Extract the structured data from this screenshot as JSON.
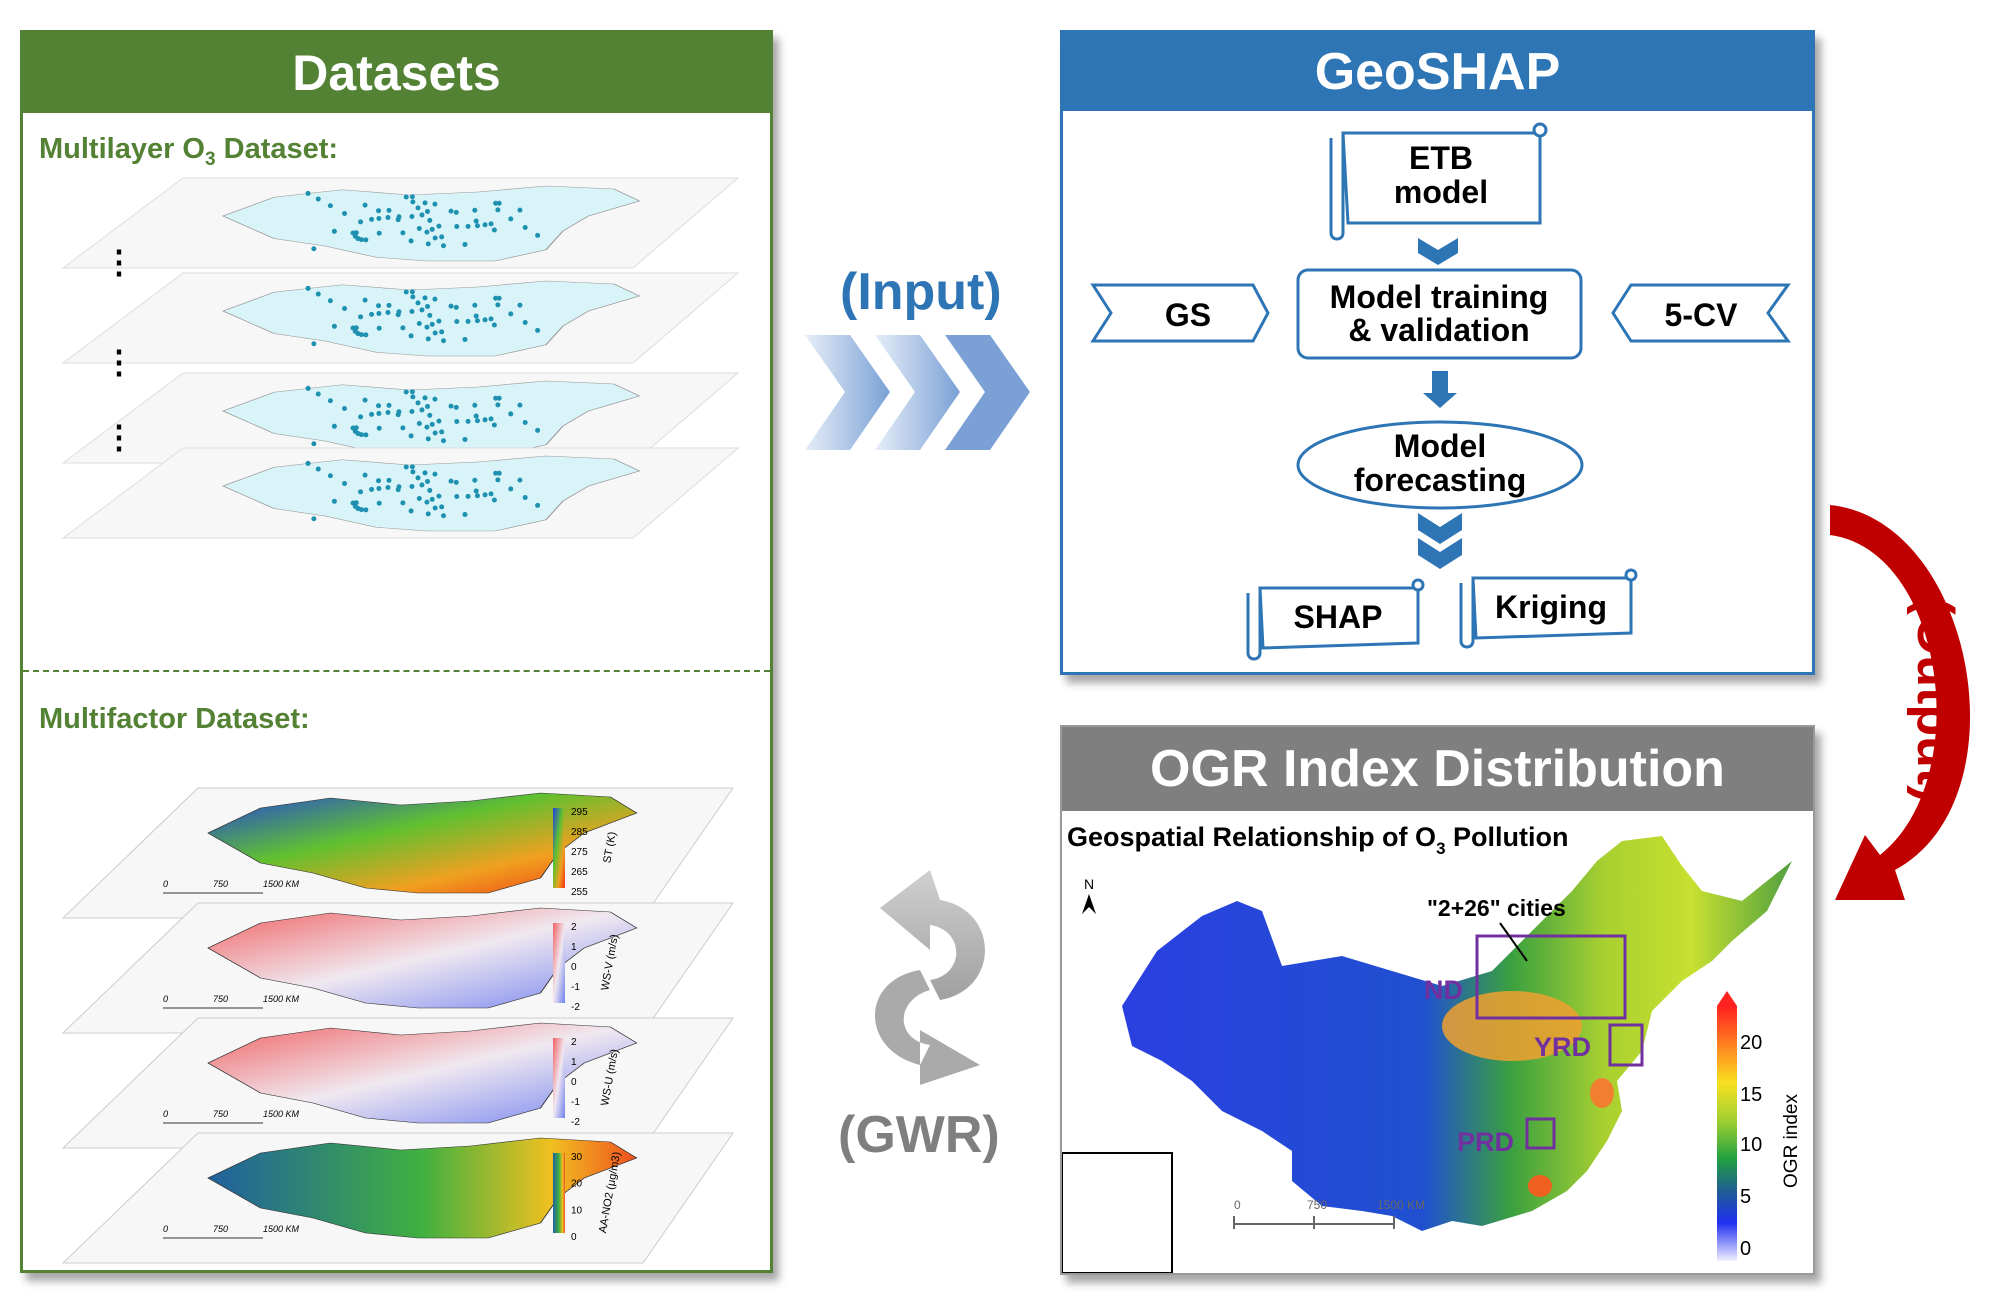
{
  "datasets": {
    "title": "Datasets",
    "o3_label": "Multilayer O",
    "o3_sub": "3",
    "o3_suffix": " Dataset:",
    "factor_label": "Multifactor Dataset:",
    "layers": [
      {
        "var": "ST (K)",
        "ticks": [
          "295",
          "285",
          "275",
          "265",
          "255"
        ]
      },
      {
        "var": "WS-V (m/s)",
        "ticks": [
          "2",
          "1",
          "0",
          "-1",
          "-2"
        ]
      },
      {
        "var": "WS-U (m/s)",
        "ticks": [
          "2",
          "1",
          "0",
          "-1",
          "-2"
        ]
      },
      {
        "var": "AA-NO2 (μg/m3)",
        "ticks": [
          "30",
          "20",
          "10",
          "0"
        ]
      }
    ],
    "scale": [
      "0",
      "750",
      "1500 KM"
    ]
  },
  "flow": {
    "input": "(Input)",
    "gwr": "(GWR)",
    "output": "(Output)"
  },
  "geoshap": {
    "title": "GeoSHAP",
    "etb": [
      "ETB",
      "model"
    ],
    "gs": "GS",
    "training": [
      "Model training",
      "& validation"
    ],
    "cv": "5-CV",
    "forecast": [
      "Model",
      "forecasting"
    ],
    "shap": "SHAP",
    "kriging": "Kriging"
  },
  "ogr": {
    "title": "OGR Index Distribution",
    "map_title": "Geospatial Relationship of O",
    "map_title_sub": "3",
    "map_title_suffix": " Pollution",
    "north": "N",
    "cities_label": "\"2+26\" cities",
    "regions": [
      "ND",
      "YRD",
      "PRD"
    ],
    "legend_title": "OGR index",
    "legend_ticks": [
      "20",
      "15",
      "10",
      "5",
      "0"
    ],
    "scale": [
      "0",
      "750",
      "1500 KM"
    ]
  },
  "colors": {
    "green": "#548235",
    "blue": "#2E75B6",
    "gray": "#7F7F7F",
    "red": "#C00000",
    "purple": "#7030A0"
  }
}
